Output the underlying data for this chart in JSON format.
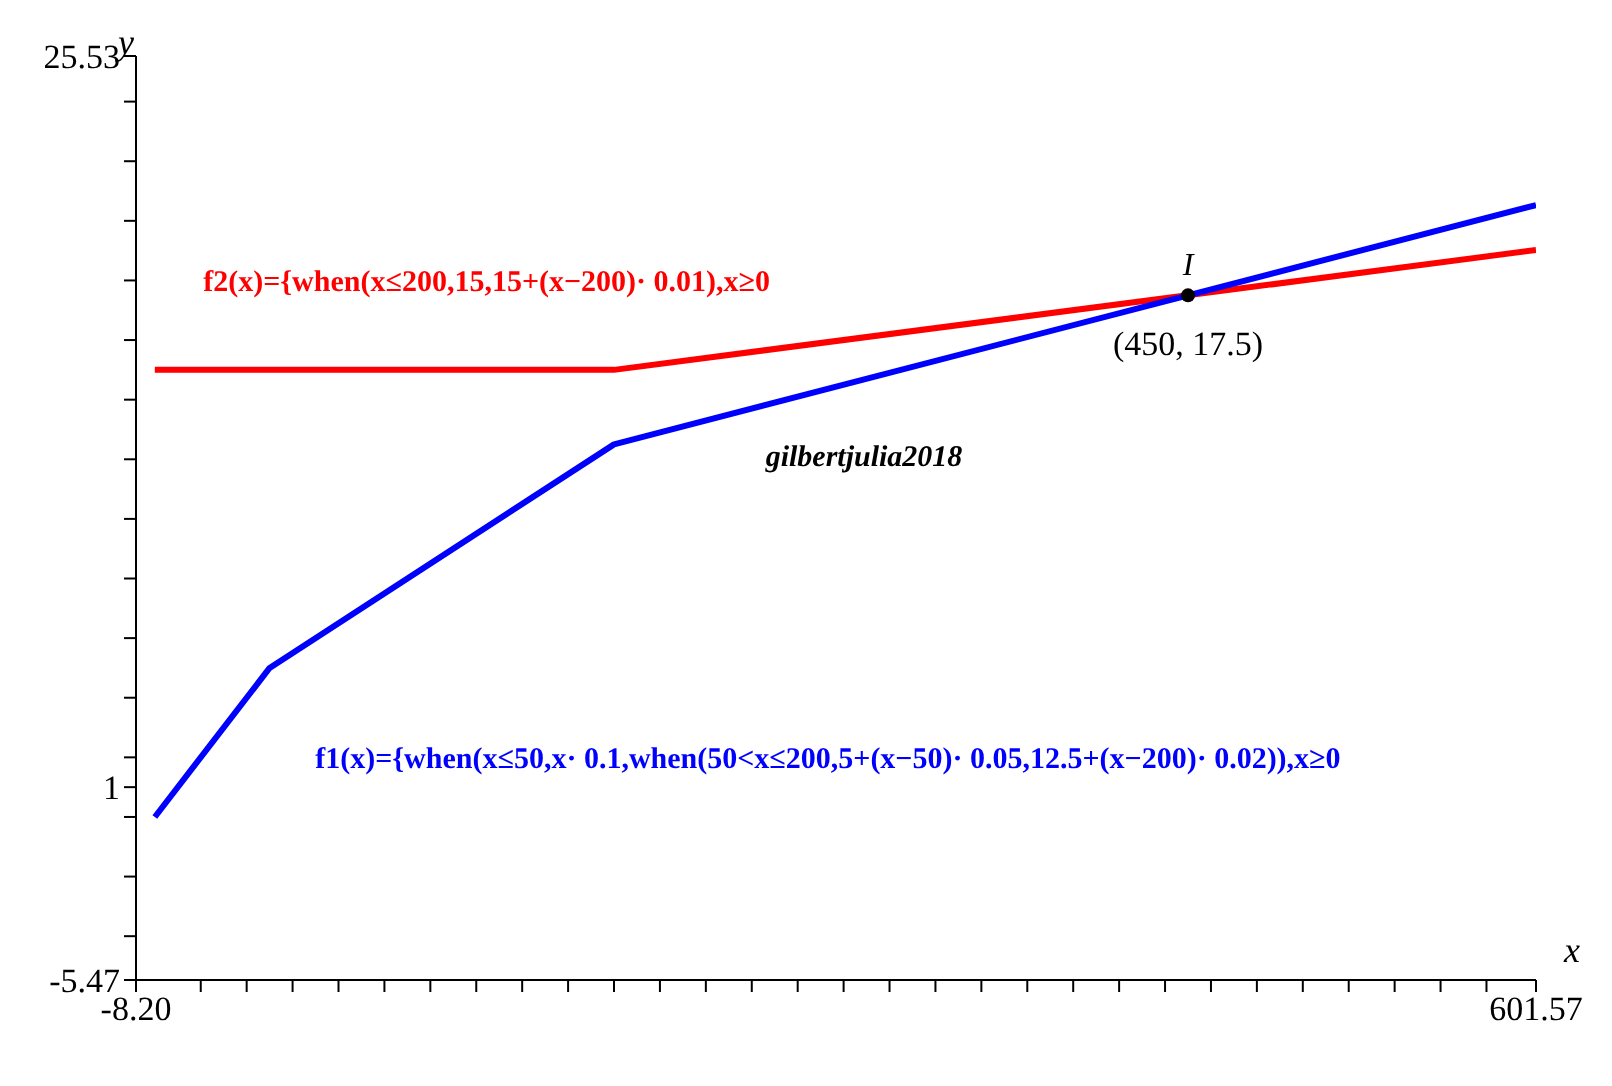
{
  "chart_data": {
    "type": "line",
    "xlabel": "x",
    "ylabel": "y",
    "xlim": [
      -8.2,
      601.57
    ],
    "ylim": [
      -5.47,
      25.53
    ],
    "xticks": [
      {
        "value": -8.2,
        "label": "-8.20"
      },
      {
        "value": 20,
        "label": null
      },
      {
        "value": 40,
        "label": null
      },
      {
        "value": 60,
        "label": null
      },
      {
        "value": 80,
        "label": null
      },
      {
        "value": 100,
        "label": null
      },
      {
        "value": 120,
        "label": null
      },
      {
        "value": 140,
        "label": null
      },
      {
        "value": 160,
        "label": null
      },
      {
        "value": 180,
        "label": null
      },
      {
        "value": 200,
        "label": null
      },
      {
        "value": 220,
        "label": null
      },
      {
        "value": 240,
        "label": null
      },
      {
        "value": 260,
        "label": null
      },
      {
        "value": 280,
        "label": null
      },
      {
        "value": 300,
        "label": null
      },
      {
        "value": 320,
        "label": null
      },
      {
        "value": 340,
        "label": null
      },
      {
        "value": 360,
        "label": null
      },
      {
        "value": 380,
        "label": null
      },
      {
        "value": 400,
        "label": null
      },
      {
        "value": 420,
        "label": null
      },
      {
        "value": 440,
        "label": null
      },
      {
        "value": 460,
        "label": null
      },
      {
        "value": 480,
        "label": null
      },
      {
        "value": 500,
        "label": null
      },
      {
        "value": 520,
        "label": null
      },
      {
        "value": 540,
        "label": null
      },
      {
        "value": 560,
        "label": null
      },
      {
        "value": 580,
        "label": null
      },
      {
        "value": 601.57,
        "label": "601.57"
      }
    ],
    "yticks": [
      {
        "value": -5.47,
        "label": "-5.47"
      },
      {
        "value": -4,
        "label": null
      },
      {
        "value": -2,
        "label": null
      },
      {
        "value": 0,
        "label": null
      },
      {
        "value": 1,
        "label": "1"
      },
      {
        "value": 2,
        "label": null
      },
      {
        "value": 4,
        "label": null
      },
      {
        "value": 6,
        "label": null
      },
      {
        "value": 8,
        "label": null
      },
      {
        "value": 10,
        "label": null
      },
      {
        "value": 12,
        "label": null
      },
      {
        "value": 14,
        "label": null
      },
      {
        "value": 16,
        "label": null
      },
      {
        "value": 18,
        "label": null
      },
      {
        "value": 20,
        "label": null
      },
      {
        "value": 22,
        "label": null
      },
      {
        "value": 24,
        "label": null
      },
      {
        "value": 25.53,
        "label": "25.53"
      }
    ],
    "series": [
      {
        "name": "f2(x)={when(x≤200,15,15+(x−200)· 0.01),x≥0",
        "color": "#ff0000",
        "x": [
          0,
          200,
          601.57
        ],
        "values": [
          15,
          15,
          19.02
        ]
      },
      {
        "name": "f1(x)={when(x≤50,x· 0.1,when(50<x≤200,5+(x−50)· 0.05,12.5+(x−200)· 0.02)),x≥0",
        "color": "#0000ff",
        "x": [
          0,
          50,
          200,
          601.57
        ],
        "values": [
          0,
          5,
          12.5,
          20.53
        ]
      },
      {
        "type": "scatter",
        "marker": "circle",
        "color": "#000000",
        "x": [
          450
        ],
        "values": [
          17.5
        ]
      }
    ],
    "annotations": [
      {
        "text": "I",
        "x": 450,
        "y": 17.5
      },
      {
        "text": "(450, 17.5)",
        "x": 450,
        "y": 17.5
      },
      "gilbertjulia2018"
    ],
    "marker": "none"
  }
}
